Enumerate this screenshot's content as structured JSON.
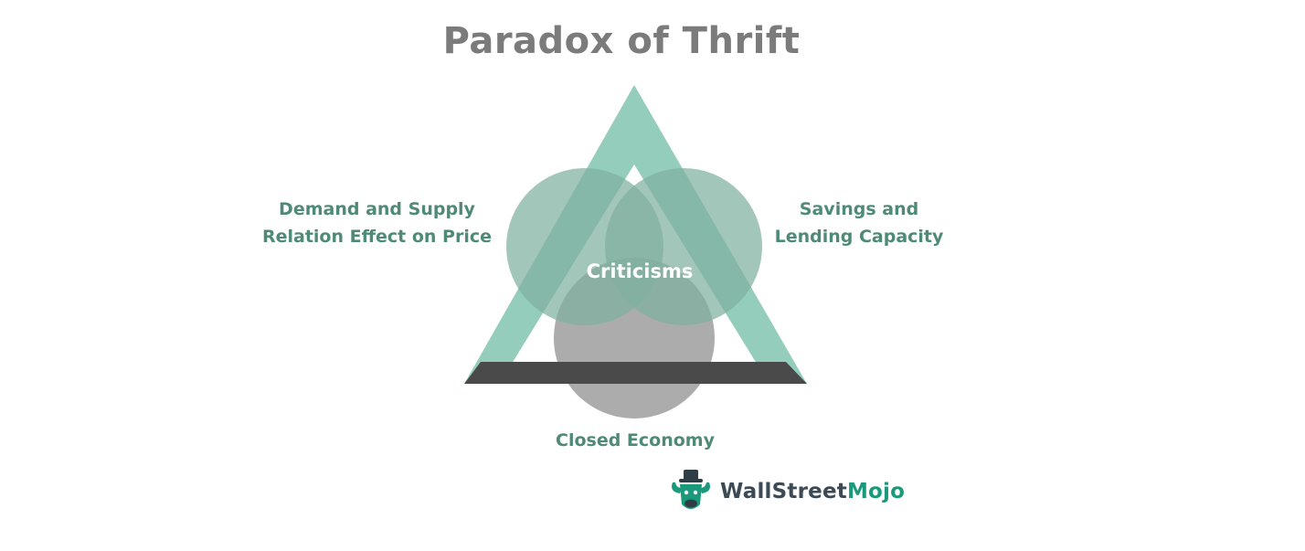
{
  "title": "Paradox of Thrift",
  "center": {
    "label": "Criticisms"
  },
  "labels": {
    "left_line1": "Demand and Supply",
    "left_line2": "Relation Effect on Price",
    "right_line1": "Savings and",
    "right_line2": "Lending Capacity",
    "bottom": "Closed Economy"
  },
  "logo": {
    "text_part1": "WallStreet",
    "text_part2": "Mojo",
    "icon": "bull-mascot-icon"
  },
  "colors": {
    "triangle": "#8fcab9",
    "circle_left": "#7fb0a0",
    "circle_right": "#7fb0a0",
    "circle_bottom": "#9a9a9a",
    "base_bar": "#4a4a4a",
    "label_text": "#4e8a77",
    "title_text": "#7b7b7b",
    "logo_dark": "#3b4a55",
    "logo_accent": "#1a9a7a"
  }
}
